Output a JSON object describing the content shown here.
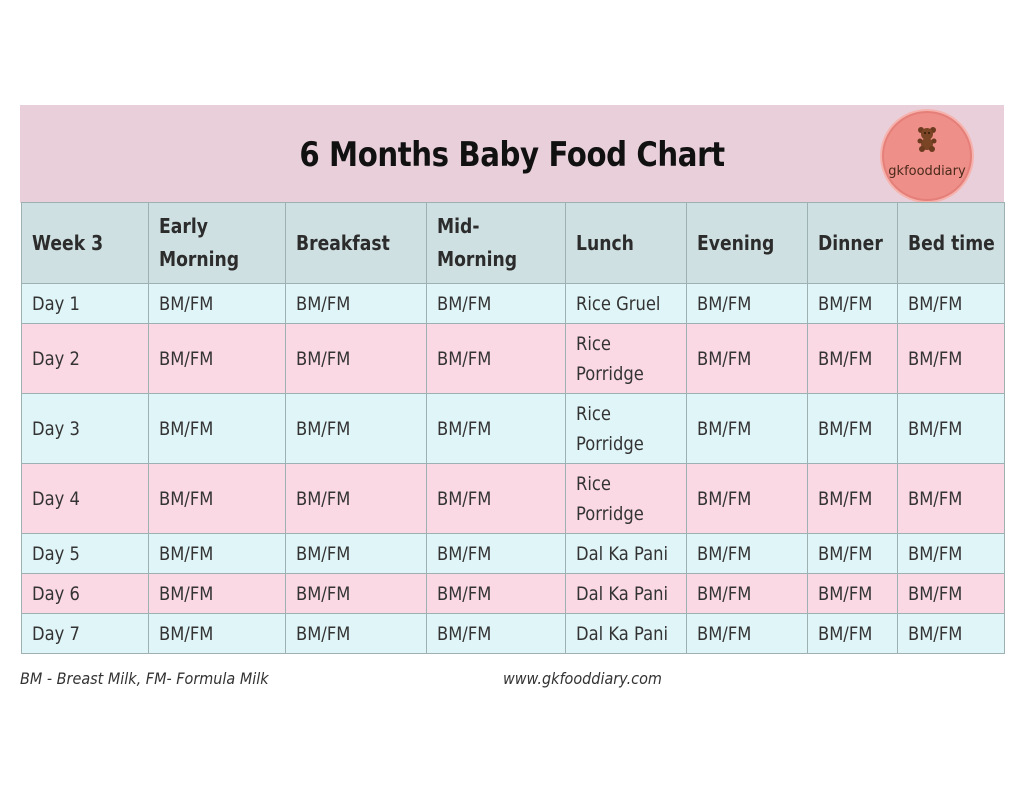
{
  "header": {
    "title": "6 Months Baby Food Chart",
    "logo_text": "gkfooddiary",
    "logo_icon": "teddy-bear-icon"
  },
  "colors": {
    "header_bg": "#e9cfda",
    "table_header_bg": "#cfe0e2",
    "row_blue": "#e0f5f8",
    "row_pink": "#fbd9e4",
    "logo_bg": "#ee8f89"
  },
  "table": {
    "columns": [
      "Week 3",
      "Early Morning",
      "Breakfast",
      "Mid-Morning",
      "Lunch",
      "Evening",
      "Dinner",
      "Bed time"
    ],
    "rows": [
      [
        "Day 1",
        "BM/FM",
        "BM/FM",
        "BM/FM",
        "Rice Gruel",
        "BM/FM",
        "BM/FM",
        "BM/FM"
      ],
      [
        "Day 2",
        "BM/FM",
        "BM/FM",
        "BM/FM",
        "Rice Porridge",
        "BM/FM",
        "BM/FM",
        "BM/FM"
      ],
      [
        "Day 3",
        "BM/FM",
        "BM/FM",
        "BM/FM",
        "Rice Porridge",
        "BM/FM",
        "BM/FM",
        "BM/FM"
      ],
      [
        "Day 4",
        "BM/FM",
        "BM/FM",
        "BM/FM",
        "Rice Porridge",
        "BM/FM",
        "BM/FM",
        "BM/FM"
      ],
      [
        "Day 5",
        "BM/FM",
        "BM/FM",
        "BM/FM",
        "Dal Ka Pani",
        "BM/FM",
        "BM/FM",
        "BM/FM"
      ],
      [
        "Day 6",
        "BM/FM",
        "BM/FM",
        "BM/FM",
        "Dal Ka Pani",
        "BM/FM",
        "BM/FM",
        "BM/FM"
      ],
      [
        "Day 7",
        "BM/FM",
        "BM/FM",
        "BM/FM",
        "Dal Ka Pani",
        "BM/FM",
        "BM/FM",
        "BM/FM"
      ]
    ]
  },
  "footer": {
    "note": "BM - Breast Milk, FM- Formula Milk",
    "url": "www.gkfooddiary.com"
  }
}
